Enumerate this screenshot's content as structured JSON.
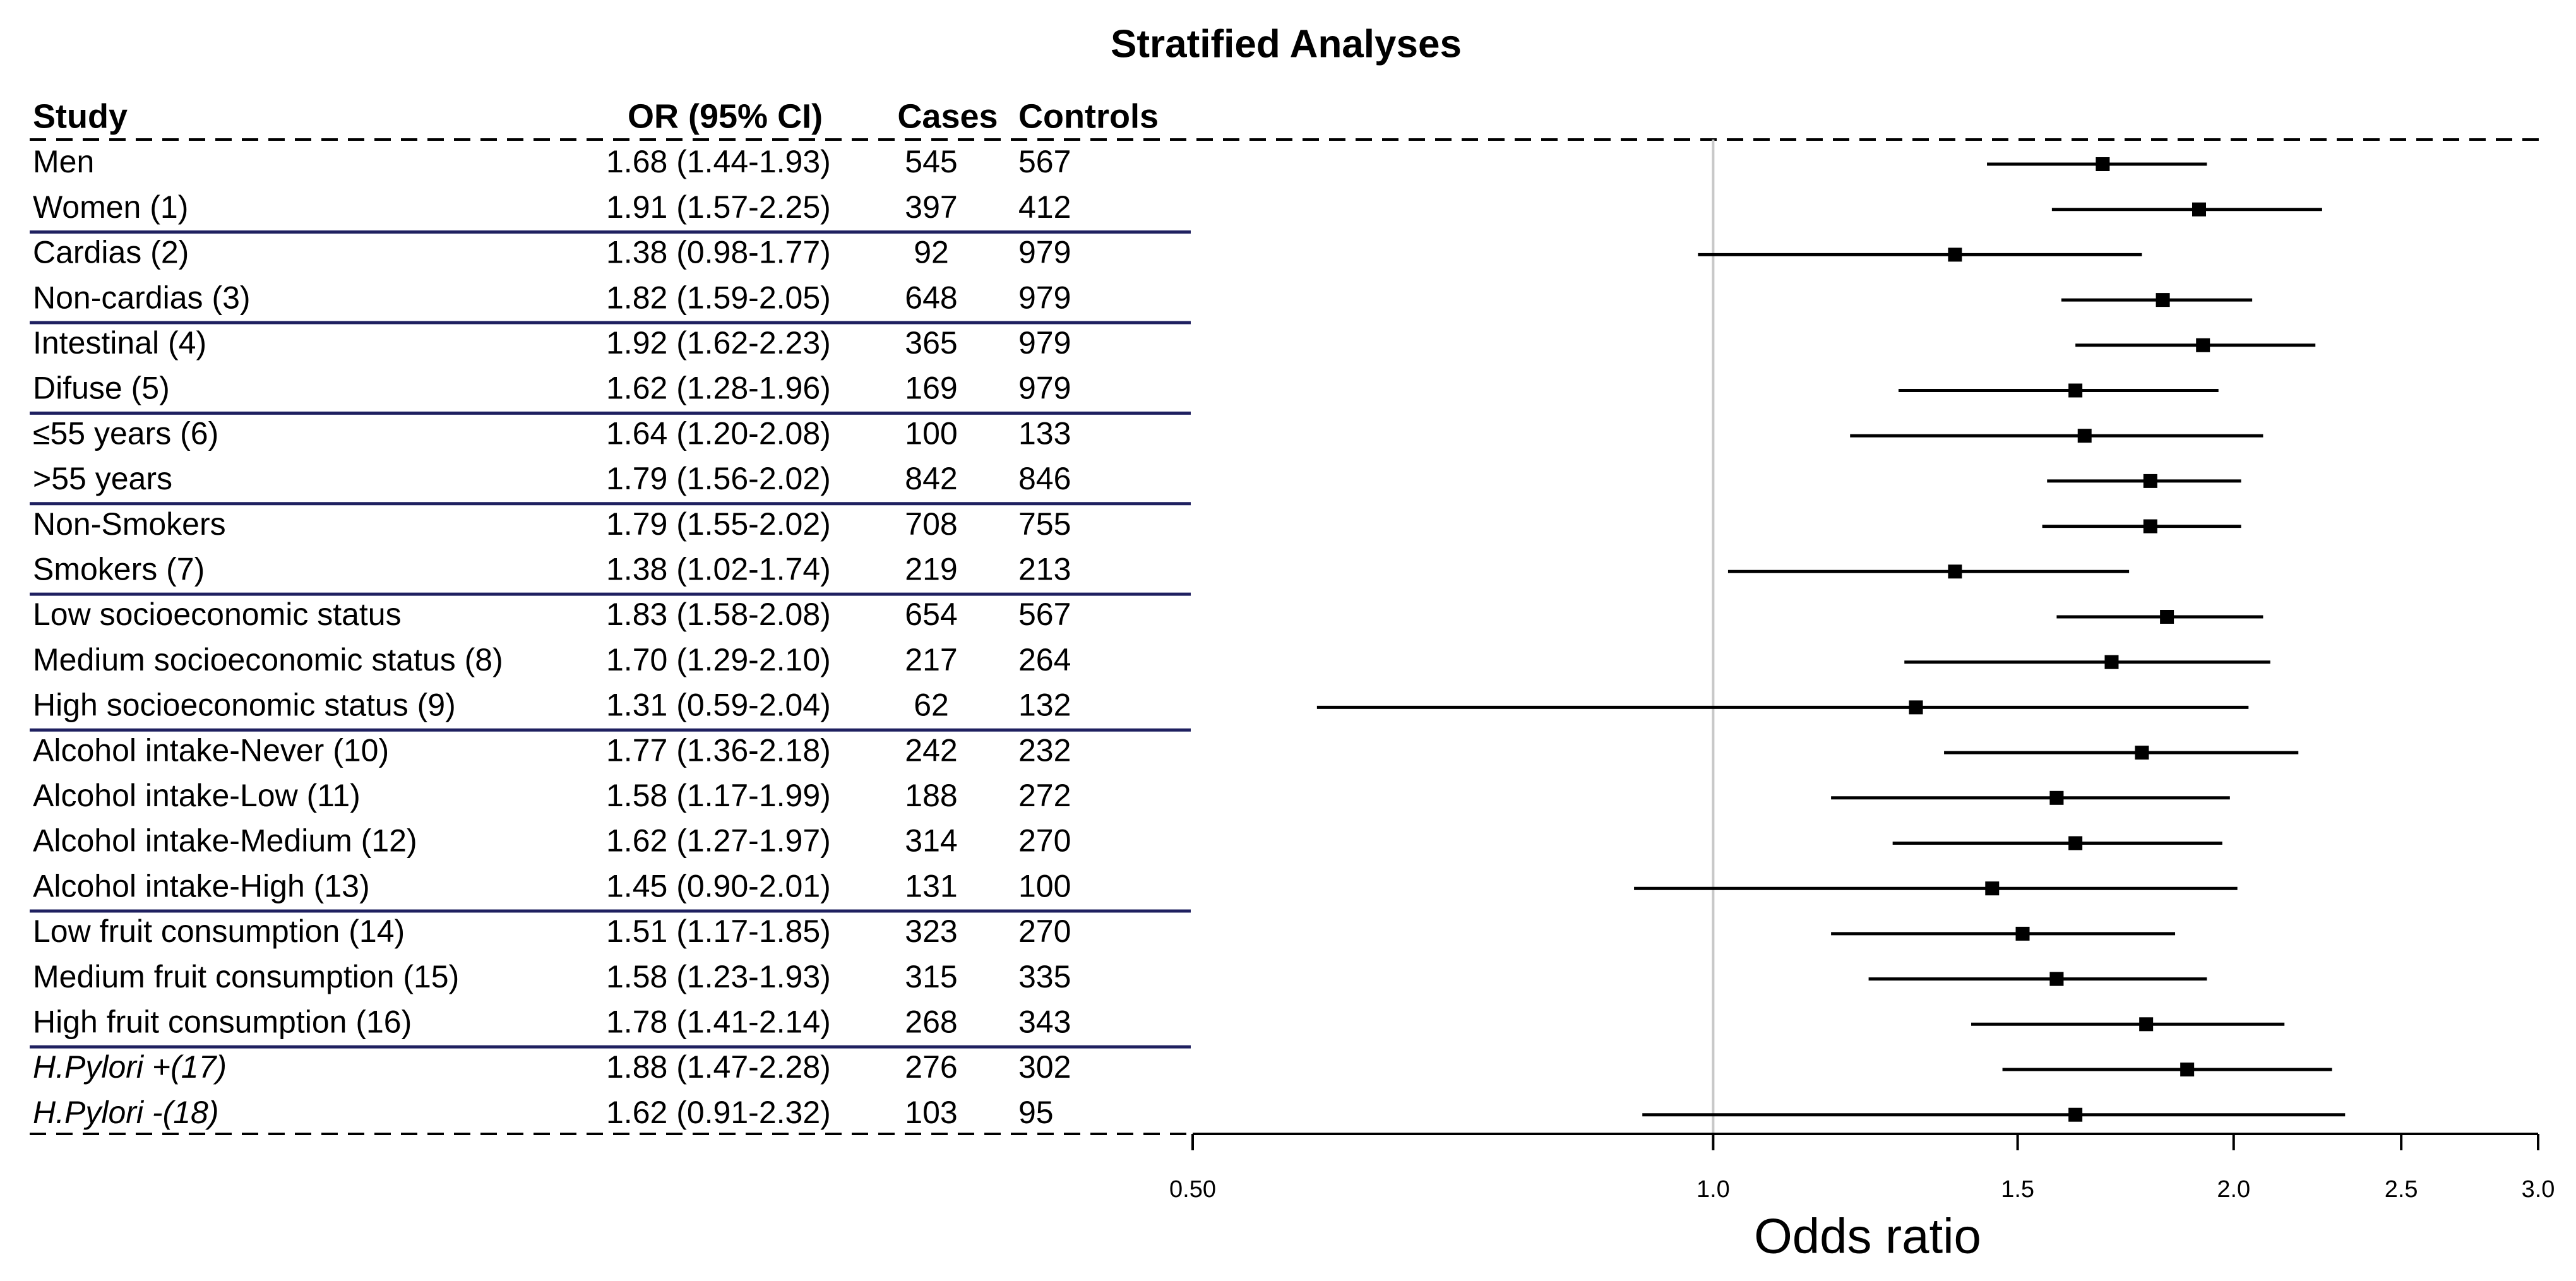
{
  "chart_data": {
    "type": "forest",
    "title": "Stratified Analyses",
    "columns": [
      "Study",
      "OR (95% CI)",
      "Cases",
      "Controls"
    ],
    "x_label": "Odds ratio",
    "categories": [
      "Men",
      "Women (1)",
      "Cardias (2)",
      "Non-cardias (3)",
      "Intestinal (4)",
      "Difuse (5)",
      "≤55 years (6)",
      ">55 years",
      "Non-Smokers",
      "Smokers (7)",
      "Low socioeconomic status",
      "Medium socioeconomic status (8)",
      "High socioeconomic status (9)",
      "Alcohol intake-Never (10)",
      "Alcohol intake-Low (11)",
      "Alcohol intake-Medium (12)",
      "Alcohol intake-High (13)",
      "Low fruit consumption (14)",
      "Medium fruit consumption (15)",
      "High fruit consumption (16)",
      "H.Pylori +(17)",
      "H.Pylori -(18)"
    ],
    "values": [
      1.68,
      1.91,
      1.38,
      1.82,
      1.92,
      1.62,
      1.64,
      1.79,
      1.79,
      1.38,
      1.83,
      1.7,
      1.31,
      1.77,
      1.58,
      1.62,
      1.45,
      1.51,
      1.58,
      1.78,
      1.88,
      1.62
    ],
    "lower": [
      1.44,
      1.57,
      0.98,
      1.59,
      1.62,
      1.28,
      1.2,
      1.56,
      1.55,
      1.02,
      1.58,
      1.29,
      0.59,
      1.36,
      1.17,
      1.27,
      0.9,
      1.17,
      1.23,
      1.41,
      1.47,
      0.91
    ],
    "upper": [
      1.93,
      2.25,
      1.77,
      2.05,
      2.23,
      1.96,
      2.08,
      2.02,
      2.02,
      1.74,
      2.08,
      2.1,
      2.04,
      2.18,
      1.99,
      1.97,
      2.01,
      1.85,
      1.93,
      2.14,
      2.28,
      2.32
    ],
    "value_labels": [
      "1.68 (1.44-1.93)",
      "1.91 (1.57-2.25)",
      "1.38 (0.98-1.77)",
      "1.82 (1.59-2.05)",
      "1.92 (1.62-2.23)",
      "1.62 (1.28-1.96)",
      "1.64 (1.20-2.08)",
      "1.79 (1.56-2.02)",
      "1.79 (1.55-2.02)",
      "1.38 (1.02-1.74)",
      "1.83 (1.58-2.08)",
      "1.70 (1.29-2.10)",
      "1.31 (0.59-2.04)",
      "1.77 (1.36-2.18)",
      "1.58 (1.17-1.99)",
      "1.62 (1.27-1.97)",
      "1.45 (0.90-2.01)",
      "1.51 (1.17-1.85)",
      "1.58 (1.23-1.93)",
      "1.78 (1.41-2.14)",
      "1.88 (1.47-2.28)",
      "1.62 (0.91-2.32)"
    ],
    "cases": [
      545,
      397,
      92,
      648,
      365,
      169,
      100,
      842,
      708,
      219,
      654,
      217,
      62,
      242,
      188,
      314,
      131,
      323,
      315,
      268,
      276,
      103
    ],
    "controls": [
      567,
      412,
      979,
      979,
      979,
      979,
      133,
      846,
      755,
      213,
      567,
      264,
      132,
      232,
      272,
      270,
      100,
      270,
      335,
      343,
      302,
      95
    ],
    "separators_after": [
      1,
      3,
      5,
      7,
      9,
      12,
      16,
      19
    ],
    "log_x": true,
    "reference": 1,
    "xlim": [
      0.5,
      3.0
    ],
    "xticks": [
      {
        "value": 0.5,
        "label": "0.50"
      },
      {
        "value": 1,
        "label": "1.0"
      },
      1.5,
      {
        "value": 2,
        "label": "2.0"
      },
      2.5,
      {
        "value": 3,
        "label": "3.0"
      }
    ],
    "color": "#000000",
    "separator_color": "#1f2060"
  }
}
